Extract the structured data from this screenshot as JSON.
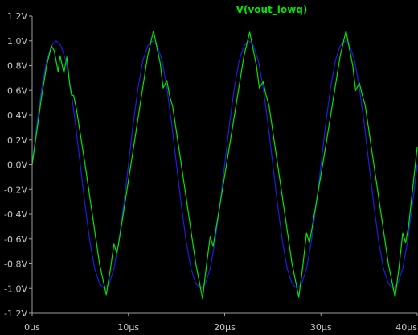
{
  "window": {
    "background": "#000000"
  },
  "chart_data": {
    "type": "line",
    "title": "V(vout_lowq)",
    "title_color": "#00e600",
    "xlabel": "",
    "ylabel": "",
    "xlim_us": [
      0,
      40
    ],
    "ylim_V": [
      -1.2,
      1.2
    ],
    "grid": false,
    "axis_color": "#a0a0a0",
    "x_ticks": [
      {
        "value": 0,
        "label": "0µs"
      },
      {
        "value": 10,
        "label": "10µs"
      },
      {
        "value": 20,
        "label": "20µs"
      },
      {
        "value": 30,
        "label": "30µs"
      },
      {
        "value": 40,
        "label": "40µs"
      }
    ],
    "y_ticks": [
      {
        "value": 1.2,
        "label": "1.2V"
      },
      {
        "value": 1.0,
        "label": "1.0V"
      },
      {
        "value": 0.8,
        "label": "0.8V"
      },
      {
        "value": 0.6,
        "label": "0.6V"
      },
      {
        "value": 0.4,
        "label": "0.4V"
      },
      {
        "value": 0.2,
        "label": "0.2V"
      },
      {
        "value": 0.0,
        "label": "0.0V"
      },
      {
        "value": -0.2,
        "label": "-0.2V"
      },
      {
        "value": -0.4,
        "label": "-0.4V"
      },
      {
        "value": -0.6,
        "label": "-0.6V"
      },
      {
        "value": -0.8,
        "label": "-0.8V"
      },
      {
        "value": -1.0,
        "label": "-1.0V"
      },
      {
        "value": -1.2,
        "label": "-1.2V"
      }
    ],
    "series": [
      {
        "color": "#1e1edc",
        "x_us": [
          0,
          0.5,
          1,
          1.5,
          2,
          2.5,
          3,
          3.5,
          4,
          4.5,
          5,
          5.5,
          6,
          6.5,
          7,
          7.5,
          8,
          8.5,
          9,
          9.5,
          10,
          10.5,
          11,
          11.5,
          12,
          12.5,
          13,
          13.5,
          14,
          14.5,
          15,
          15.5,
          16,
          16.5,
          17,
          17.5,
          18,
          18.5,
          19,
          19.5,
          20,
          20.5,
          21,
          21.5,
          22,
          22.5,
          23,
          23.5,
          24,
          24.5,
          25,
          25.5,
          26,
          26.5,
          27,
          27.5,
          28,
          28.5,
          29,
          29.5,
          30,
          30.5,
          31,
          31.5,
          32,
          32.5,
          33,
          33.5,
          34,
          34.5,
          35,
          35.5,
          36,
          36.5,
          37,
          37.5,
          38,
          38.5,
          39,
          39.5,
          40
        ],
        "y_V": [
          0.0,
          0.33,
          0.62,
          0.84,
          0.96,
          1.0,
          0.96,
          0.84,
          0.62,
          0.33,
          0.0,
          -0.33,
          -0.62,
          -0.84,
          -0.96,
          -1.0,
          -0.96,
          -0.84,
          -0.62,
          -0.33,
          0.0,
          0.33,
          0.62,
          0.84,
          0.96,
          1.0,
          0.96,
          0.84,
          0.62,
          0.33,
          0.0,
          -0.33,
          -0.62,
          -0.84,
          -0.96,
          -1.0,
          -0.96,
          -0.84,
          -0.62,
          -0.33,
          0.0,
          0.33,
          0.62,
          0.84,
          0.96,
          1.0,
          0.96,
          0.84,
          0.62,
          0.33,
          0.0,
          -0.33,
          -0.62,
          -0.84,
          -0.96,
          -1.0,
          -0.96,
          -0.84,
          -0.62,
          -0.33,
          0.0,
          0.33,
          0.62,
          0.84,
          0.96,
          1.0,
          0.96,
          0.84,
          0.62,
          0.33,
          0.0,
          -0.33,
          -0.62,
          -0.84,
          -0.96,
          -1.0,
          -0.96,
          -0.84,
          -0.62,
          -0.33,
          0.0
        ]
      },
      {
        "name": "V(vout_lowq)",
        "color": "#00e600",
        "x_us": [
          0,
          0.5,
          1,
          1.5,
          2,
          2.3,
          2.7,
          2.9,
          3.3,
          3.6,
          3.9,
          4.1,
          4.3,
          4.6,
          5.5,
          7,
          7.7,
          8.1,
          8.5,
          8.8,
          9.1,
          10.5,
          12,
          12.6,
          13.3,
          13.6,
          14,
          14.3,
          14.6,
          15.5,
          17,
          17.7,
          18.1,
          18.5,
          18.8,
          19.1,
          20.5,
          22,
          22.6,
          23.3,
          23.6,
          24,
          24.3,
          24.6,
          25.5,
          27,
          27.7,
          28.1,
          28.5,
          28.8,
          29.1,
          30.5,
          32,
          32.6,
          33.3,
          33.6,
          34,
          34.3,
          34.6,
          35.5,
          37,
          37.7,
          38.1,
          38.5,
          38.8,
          39.1,
          40
        ],
        "y_V": [
          0.0,
          0.28,
          0.56,
          0.8,
          0.96,
          0.92,
          0.75,
          0.88,
          0.74,
          0.87,
          0.65,
          0.56,
          0.56,
          0.45,
          0.0,
          -0.8,
          -1.05,
          -0.86,
          -0.64,
          -0.72,
          -0.58,
          0.12,
          0.88,
          1.08,
          0.82,
          0.62,
          0.68,
          0.55,
          0.47,
          0.0,
          -0.8,
          -1.08,
          -0.82,
          -0.58,
          -0.66,
          -0.52,
          0.15,
          0.88,
          1.07,
          0.8,
          0.62,
          0.67,
          0.56,
          0.48,
          0.0,
          -0.8,
          -1.07,
          -0.83,
          -0.55,
          -0.63,
          -0.5,
          0.15,
          0.88,
          1.08,
          0.8,
          0.6,
          0.66,
          0.56,
          0.48,
          0.0,
          -0.8,
          -1.07,
          -0.84,
          -0.55,
          -0.63,
          -0.5,
          0.14
        ]
      }
    ]
  }
}
